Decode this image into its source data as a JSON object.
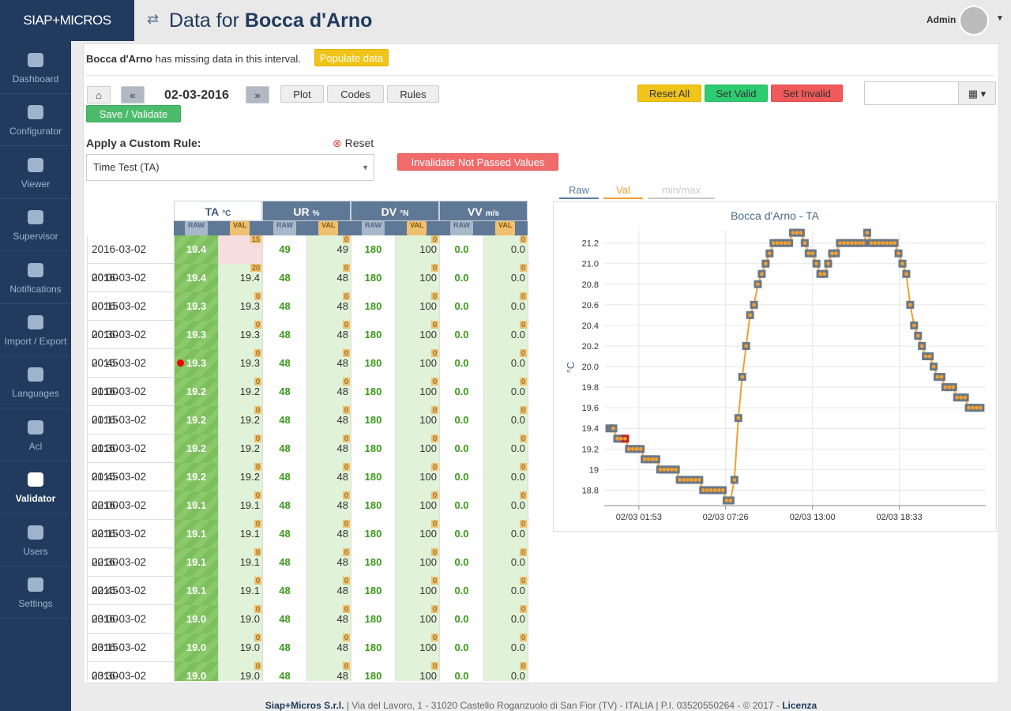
{
  "sidebar": {
    "logo": "SIAP+MICROS",
    "items": [
      "Dashboard",
      "Configurator",
      "Viewer",
      "Supervisor",
      "Notifications",
      "Import / Export",
      "Languages",
      "Acl",
      "Validator",
      "Users",
      "Settings"
    ]
  },
  "header": {
    "title_prefix": "Data for",
    "title_station": "Bocca d'Arno",
    "user": "Admin"
  },
  "notice": {
    "station": "Bocca d'Arno",
    "text": "has missing data in this interval.",
    "button": "Populate data"
  },
  "toolbar": {
    "date": "02-03-2016",
    "plot": "Plot",
    "codes": "Codes",
    "rules": "Rules",
    "save": "Save / Validate",
    "reset_all": "Reset All",
    "set_valid": "Set Valid",
    "set_invalid": "Set Invalid"
  },
  "custom_rule": {
    "label": "Apply a Custom Rule:",
    "reset": "Reset",
    "selected": "Time Test (TA)",
    "button": "Invalidate Not Passed Values"
  },
  "table": {
    "columns": [
      {
        "name": "TA",
        "unit": "°C"
      },
      {
        "name": "UR",
        "unit": "%"
      },
      {
        "name": "DV",
        "unit": "°N"
      },
      {
        "name": "VV",
        "unit": "m/s"
      }
    ],
    "raw_label": "RAW",
    "val_label": "VAL",
    "rows": [
      {
        "time": "2016-03-02 00:00",
        "cells": [
          [
            "19.4",
            null,
            "15"
          ],
          [
            "49",
            "49",
            "0"
          ],
          [
            "180",
            "100",
            "0"
          ],
          [
            "0.0",
            "0.0",
            "0"
          ]
        ]
      },
      {
        "time": "2016-03-02 00:15",
        "cells": [
          [
            "19.4",
            "19.4",
            "20"
          ],
          [
            "48",
            "48",
            "0"
          ],
          [
            "180",
            "100",
            "0"
          ],
          [
            "0.0",
            "0.0",
            "0"
          ]
        ]
      },
      {
        "time": "2016-03-02 00:30",
        "cells": [
          [
            "19.3",
            "19.3",
            "0"
          ],
          [
            "48",
            "48",
            "0"
          ],
          [
            "180",
            "100",
            "0"
          ],
          [
            "0.0",
            "0.0",
            "0"
          ]
        ]
      },
      {
        "time": "2016-03-02 00:45",
        "cells": [
          [
            "19.3",
            "19.3",
            "0"
          ],
          [
            "48",
            "48",
            "0"
          ],
          [
            "180",
            "100",
            "0"
          ],
          [
            "0.0",
            "0.0",
            "0"
          ]
        ]
      },
      {
        "time": "2016-03-02 01:00",
        "cells": [
          [
            "19.3",
            "19.3",
            "0"
          ],
          [
            "48",
            "48",
            "0"
          ],
          [
            "180",
            "100",
            "0"
          ],
          [
            "0.0",
            "0.0",
            "0"
          ]
        ]
      },
      {
        "time": "2016-03-02 01:15",
        "cells": [
          [
            "19.2",
            "19.2",
            "0"
          ],
          [
            "48",
            "48",
            "0"
          ],
          [
            "180",
            "100",
            "0"
          ],
          [
            "0.0",
            "0.0",
            "0"
          ]
        ]
      },
      {
        "time": "2016-03-02 01:30",
        "cells": [
          [
            "19.2",
            "19.2",
            "0"
          ],
          [
            "48",
            "48",
            "0"
          ],
          [
            "180",
            "100",
            "0"
          ],
          [
            "0.0",
            "0.0",
            "0"
          ]
        ]
      },
      {
        "time": "2016-03-02 01:45",
        "cells": [
          [
            "19.2",
            "19.2",
            "0"
          ],
          [
            "48",
            "48",
            "0"
          ],
          [
            "180",
            "100",
            "0"
          ],
          [
            "0.0",
            "0.0",
            "0"
          ]
        ]
      },
      {
        "time": "2016-03-02 02:00",
        "cells": [
          [
            "19.2",
            "19.2",
            "0"
          ],
          [
            "48",
            "48",
            "0"
          ],
          [
            "180",
            "100",
            "0"
          ],
          [
            "0.0",
            "0.0",
            "0"
          ]
        ]
      },
      {
        "time": "2016-03-02 02:15",
        "cells": [
          [
            "19.1",
            "19.1",
            "0"
          ],
          [
            "48",
            "48",
            "0"
          ],
          [
            "180",
            "100",
            "0"
          ],
          [
            "0.0",
            "0.0",
            "0"
          ]
        ]
      },
      {
        "time": "2016-03-02 02:30",
        "cells": [
          [
            "19.1",
            "19.1",
            "0"
          ],
          [
            "48",
            "48",
            "0"
          ],
          [
            "180",
            "100",
            "0"
          ],
          [
            "0.0",
            "0.0",
            "0"
          ]
        ]
      },
      {
        "time": "2016-03-02 02:45",
        "cells": [
          [
            "19.1",
            "19.1",
            "0"
          ],
          [
            "48",
            "48",
            "0"
          ],
          [
            "180",
            "100",
            "0"
          ],
          [
            "0.0",
            "0.0",
            "0"
          ]
        ]
      },
      {
        "time": "2016-03-02 03:00",
        "cells": [
          [
            "19.1",
            "19.1",
            "0"
          ],
          [
            "48",
            "48",
            "0"
          ],
          [
            "180",
            "100",
            "0"
          ],
          [
            "0.0",
            "0.0",
            "0"
          ]
        ]
      },
      {
        "time": "2016-03-02 03:15",
        "cells": [
          [
            "19.0",
            "19.0",
            "0"
          ],
          [
            "48",
            "48",
            "0"
          ],
          [
            "180",
            "100",
            "0"
          ],
          [
            "0.0",
            "0.0",
            "0"
          ]
        ]
      },
      {
        "time": "2016-03-02 03:30",
        "cells": [
          [
            "19.0",
            "19.0",
            "0"
          ],
          [
            "48",
            "48",
            "0"
          ],
          [
            "180",
            "100",
            "0"
          ],
          [
            "0.0",
            "0.0",
            "0"
          ]
        ]
      },
      {
        "time": "2016-03-02 03:45",
        "cells": [
          [
            "19.0",
            "19.0",
            "0"
          ],
          [
            "48",
            "48",
            "0"
          ],
          [
            "180",
            "100",
            "0"
          ],
          [
            "0.0",
            "0.0",
            "0"
          ]
        ]
      }
    ]
  },
  "chart_tabs": [
    "Raw",
    "Val",
    "min/max"
  ],
  "chart_data": {
    "type": "line",
    "title": "Bocca d'Arno - TA",
    "y_label": "°C",
    "x": [
      0,
      15,
      30,
      45,
      60,
      75,
      90,
      105,
      120,
      135,
      150,
      165,
      180,
      195,
      210,
      225,
      240,
      255,
      270,
      285,
      300,
      315,
      330,
      345,
      360,
      375,
      390,
      405,
      420,
      435,
      450,
      465,
      480,
      495,
      510,
      525,
      540,
      555,
      570,
      585,
      600,
      615,
      630,
      645,
      660,
      675,
      690,
      705,
      720,
      735,
      750,
      765,
      780,
      795,
      810,
      825,
      840,
      855,
      870,
      885,
      900,
      915,
      930,
      945,
      960,
      975,
      990,
      1005,
      1020,
      1035,
      1050,
      1065,
      1080,
      1095,
      1110,
      1125,
      1140,
      1155,
      1170,
      1185,
      1200,
      1215,
      1230,
      1245,
      1260,
      1275,
      1290,
      1305,
      1320,
      1335,
      1350,
      1365,
      1380,
      1395,
      1410,
      1425
    ],
    "xlim": [
      -20,
      1445
    ],
    "xticks": [
      {
        "value": 113,
        "label": "02/03 01:53"
      },
      {
        "value": 446,
        "label": "02/03 07:26"
      },
      {
        "value": 780,
        "label": "02/03 13:00"
      },
      {
        "value": 1113,
        "label": "02/03 18:33"
      }
    ],
    "ylim": [
      18.65,
      21.32
    ],
    "yticks": [
      18.8,
      19,
      19.2,
      19.4,
      19.6,
      19.8,
      {
        "value": 20,
        "label": "20.0"
      },
      20.2,
      20.4,
      20.6,
      20.8,
      {
        "value": 21,
        "label": "21.0"
      },
      21.2
    ],
    "grid": true,
    "series": [
      {
        "name": "Raw",
        "color": "#6b7785",
        "marker": "square",
        "values": [
          19.4,
          19.4,
          19.3,
          19.3,
          19.3,
          19.2,
          19.2,
          19.2,
          19.2,
          19.1,
          19.1,
          19.1,
          19.1,
          19.0,
          19.0,
          19.0,
          19.0,
          19.0,
          18.9,
          18.9,
          18.9,
          18.9,
          18.9,
          18.9,
          18.8,
          18.8,
          18.8,
          18.8,
          18.8,
          18.8,
          18.7,
          18.7,
          18.9,
          19.5,
          19.9,
          20.2,
          20.5,
          20.6,
          20.8,
          20.9,
          21.0,
          21.1,
          21.2,
          21.2,
          21.2,
          21.2,
          21.2,
          21.3,
          21.3,
          21.3,
          21.2,
          21.1,
          21.1,
          21.0,
          20.9,
          20.9,
          21.0,
          21.1,
          21.1,
          21.2,
          21.2,
          21.2,
          21.2,
          21.2,
          21.2,
          21.2,
          21.3,
          21.2,
          21.2,
          21.2,
          21.2,
          21.2,
          21.2,
          21.2,
          21.1,
          21.0,
          20.9,
          20.6,
          20.4,
          20.3,
          20.2,
          20.1,
          20.1,
          20.0,
          19.9,
          19.9,
          19.8,
          19.8,
          19.8,
          19.7,
          19.7,
          19.7,
          19.6,
          19.6,
          19.6,
          19.6
        ]
      },
      {
        "name": "Val",
        "color": "#f0a030",
        "marker": "circle",
        "values": [
          null,
          19.4,
          19.3,
          19.3,
          19.3,
          19.2,
          19.2,
          19.2,
          19.2,
          19.1,
          19.1,
          19.1,
          19.1,
          19.0,
          19.0,
          19.0,
          19.0,
          19.0,
          18.9,
          18.9,
          18.9,
          18.9,
          18.9,
          18.9,
          18.8,
          18.8,
          18.8,
          18.8,
          18.8,
          18.8,
          18.7,
          18.7,
          18.9,
          19.5,
          19.9,
          20.2,
          20.5,
          20.6,
          20.8,
          20.9,
          21.0,
          21.1,
          21.2,
          21.2,
          21.2,
          21.2,
          21.2,
          21.3,
          21.3,
          21.3,
          21.2,
          21.1,
          21.1,
          21.0,
          20.9,
          20.9,
          21.0,
          21.1,
          21.1,
          21.2,
          21.2,
          21.2,
          21.2,
          21.2,
          21.2,
          21.2,
          21.3,
          21.2,
          21.2,
          21.2,
          21.2,
          21.2,
          21.2,
          21.2,
          21.1,
          21.0,
          20.9,
          20.6,
          20.4,
          20.3,
          20.2,
          20.1,
          20.1,
          20.0,
          19.9,
          19.9,
          19.8,
          19.8,
          19.8,
          19.7,
          19.7,
          19.7,
          19.6,
          19.6,
          19.6,
          19.6
        ]
      }
    ]
  },
  "footer": {
    "company": "Siap+Micros S.r.l.",
    "address": "| Via del Lavoro, 1 - 31020 Castello Roganzuolo di San Fior (TV) - ITALIA | P.I. 03520550264 - © 2017 -",
    "license": "Licenza"
  }
}
